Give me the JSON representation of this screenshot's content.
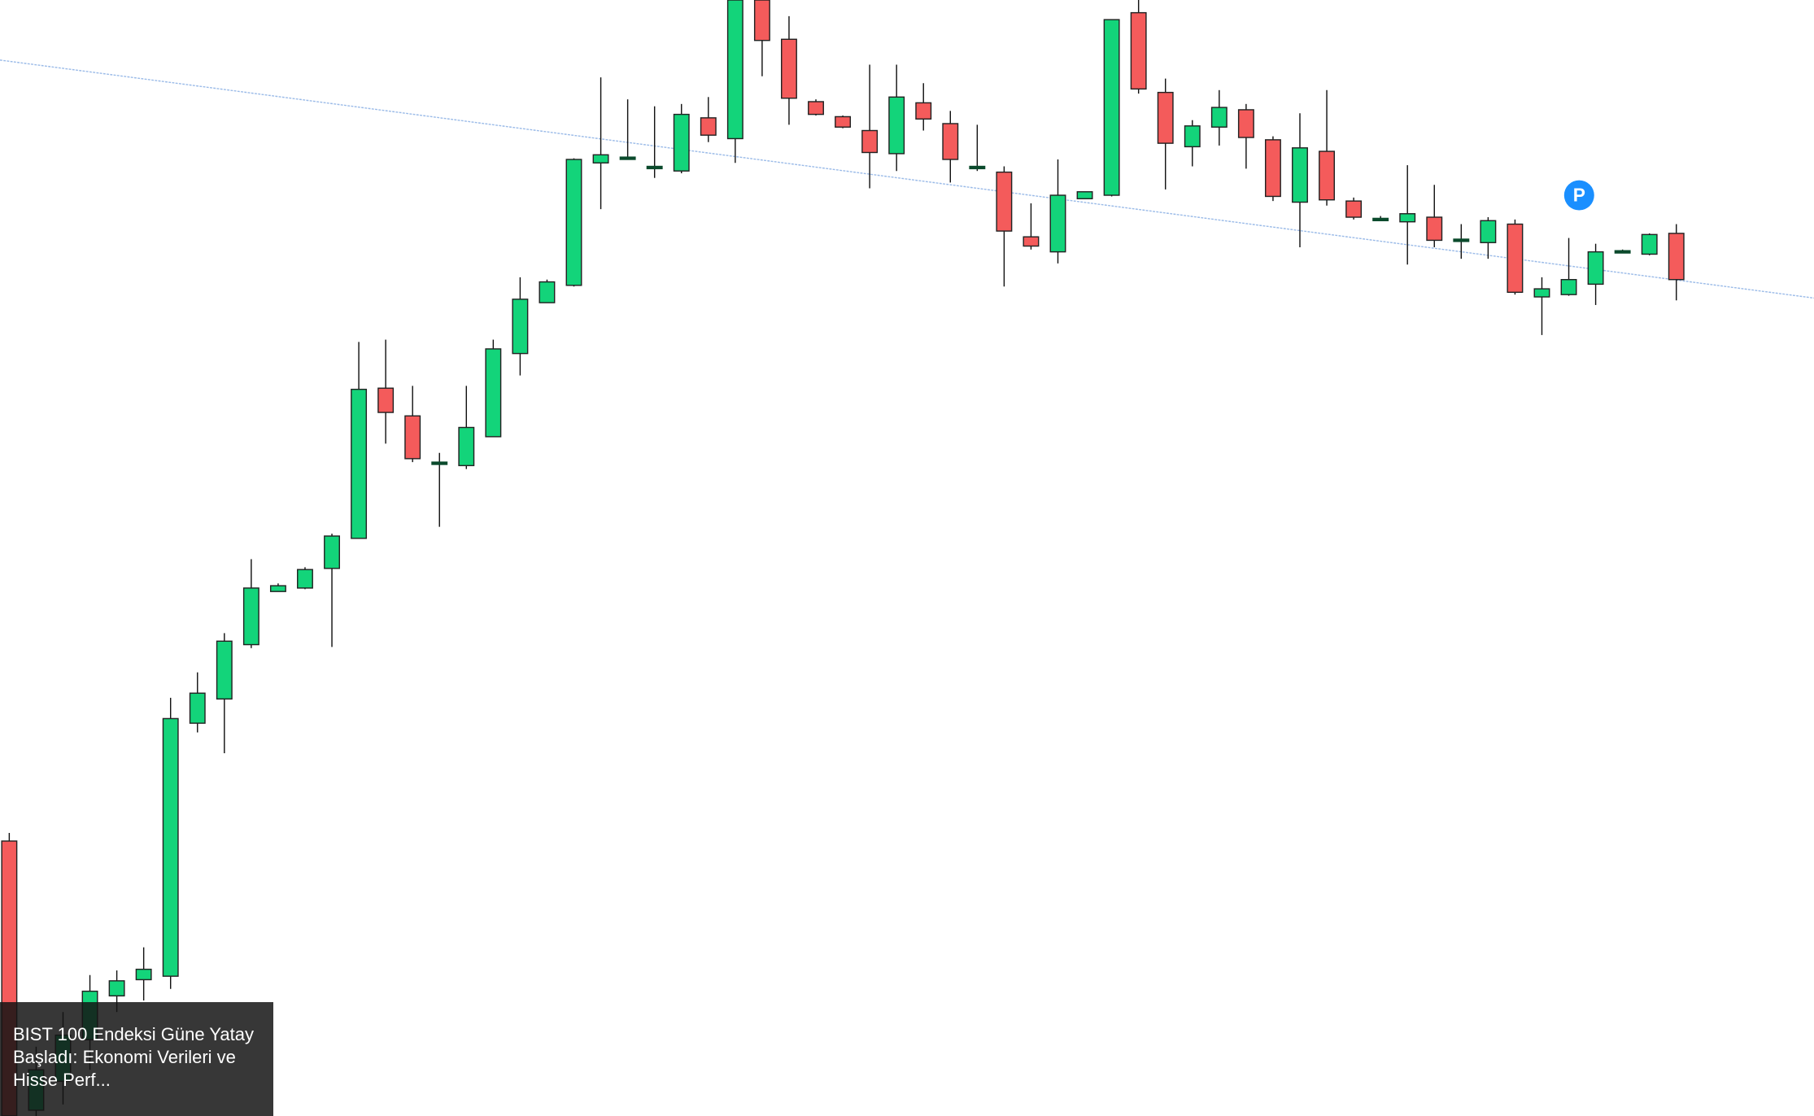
{
  "chart_data": {
    "type": "candlestick",
    "open": [
      238,
      5,
      30,
      66,
      104,
      118,
      121,
      340,
      361,
      408,
      454,
      457,
      474,
      500,
      630,
      606,
      566,
      563,
      588,
      660,
      704,
      719,
      825,
      830,
      822,
      818,
      864,
      846,
      966,
      932,
      878,
      865,
      853,
      833,
      877,
      859,
      822,
      817,
      761,
      748,
      794,
      797,
      955,
      886,
      839,
      856,
      871,
      845,
      791,
      835,
      792,
      777,
      774,
      778,
      759,
      756,
      772,
      709,
      711,
      720,
      749,
      746,
      764
    ],
    "high": [
      245,
      60,
      90,
      122,
      126,
      146,
      362,
      384,
      418,
      482,
      461,
      475,
      504,
      670,
      672,
      632,
      574,
      632,
      672,
      726,
      724,
      829,
      899,
      880,
      874,
      876,
      882,
      966,
      966,
      952,
      880,
      866,
      910,
      910,
      894,
      870,
      858,
      822,
      790,
      828,
      800,
      949,
      966,
      898,
      862,
      888,
      876,
      848,
      868,
      888,
      795,
      779,
      823,
      806,
      772,
      778,
      776,
      726,
      760,
      755,
      750,
      764,
      772
    ],
    "low": [
      0,
      0,
      10,
      40,
      90,
      100,
      110,
      332,
      314,
      405,
      454,
      456,
      406,
      500,
      582,
      566,
      510,
      560,
      588,
      641,
      704,
      718,
      785,
      828,
      812,
      816,
      843,
      825,
      900,
      858,
      866,
      855,
      803,
      818,
      853,
      808,
      818,
      718,
      750,
      738,
      794,
      796,
      885,
      802,
      822,
      840,
      820,
      792,
      752,
      788,
      776,
      775,
      737,
      752,
      742,
      742,
      711,
      676,
      710,
      702,
      747,
      745,
      706
    ],
    "close": [
      0,
      40,
      70,
      108,
      117,
      127,
      344,
      366,
      411,
      457,
      459,
      473,
      502,
      629,
      609,
      569,
      566,
      596,
      664,
      707,
      722,
      828,
      832,
      830,
      822,
      867,
      849,
      966,
      931,
      881,
      867,
      856,
      834,
      882,
      863,
      828,
      822,
      766,
      753,
      797,
      800,
      949,
      889,
      842,
      857,
      873,
      847,
      796,
      838,
      793,
      778,
      777,
      781,
      758,
      759,
      775,
      713,
      716,
      724,
      748,
      749,
      763,
      724
    ],
    "up_color": "#13d47a",
    "down_color": "#f45b5b",
    "ylim": [
      0,
      966
    ],
    "badge": "P",
    "news": "BIST 100 Endeksi Güne Yatay Başladı: Ekonomi Verileri ve Hisse Perf..."
  }
}
